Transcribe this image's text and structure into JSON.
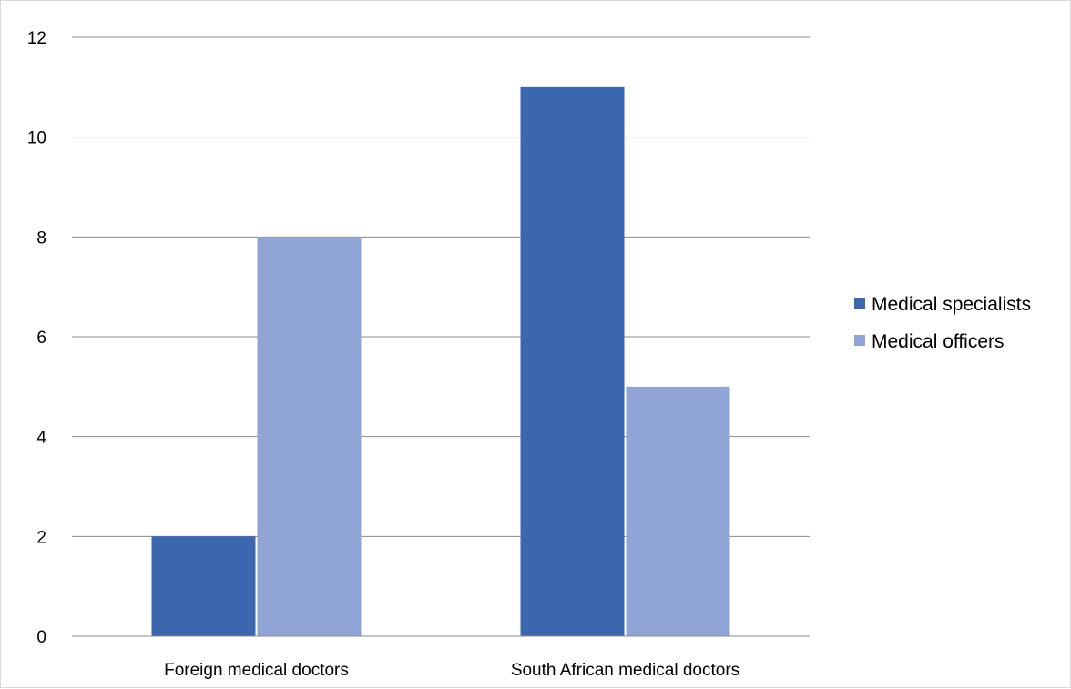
{
  "chart_data": {
    "type": "bar",
    "categories": [
      "Foreign medical doctors",
      "South African medical doctors"
    ],
    "series": [
      {
        "name": "Medical specialists",
        "values": [
          2,
          11
        ],
        "color": "#3c66ad"
      },
      {
        "name": "Medical officers",
        "values": [
          8,
          5
        ],
        "color": "#90a5d5"
      }
    ],
    "ylim": [
      0,
      12
    ],
    "yticks": [
      0,
      2,
      4,
      6,
      8,
      10,
      12
    ],
    "grid": true,
    "legend_position": "right"
  }
}
